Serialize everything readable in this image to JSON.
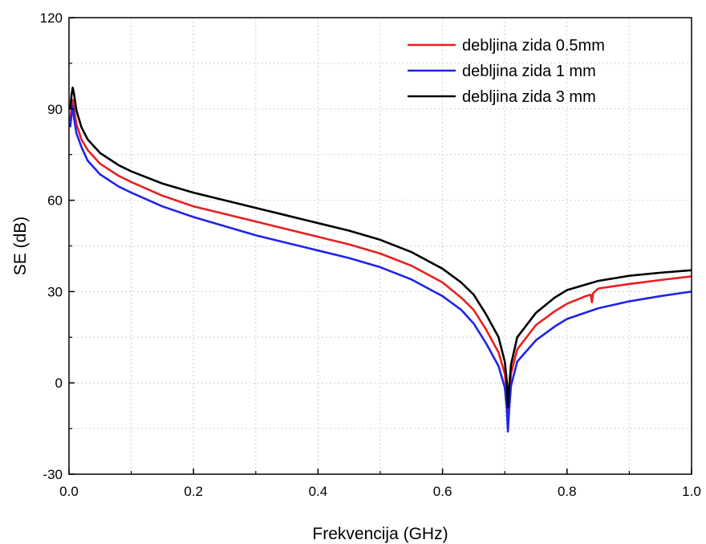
{
  "chart_data": {
    "type": "line",
    "xlabel": "Frekvencija (GHz)",
    "ylabel": "SE (dB)",
    "xlim": [
      0.0,
      1.0
    ],
    "ylim": [
      -30,
      120
    ],
    "xticks": [
      "0.0",
      "0.2",
      "0.4",
      "0.6",
      "0.8",
      "1.0"
    ],
    "yticks": [
      "-30",
      "0",
      "30",
      "60",
      "90",
      "120"
    ],
    "grid": true,
    "legend_position": "top-right",
    "series": [
      {
        "name": "debljina zida 0.5mm",
        "color": "#e8201f",
        "points": [
          [
            0.002,
            86
          ],
          [
            0.004,
            90
          ],
          [
            0.006,
            93
          ],
          [
            0.008,
            90
          ],
          [
            0.012,
            85
          ],
          [
            0.02,
            80
          ],
          [
            0.03,
            76.5
          ],
          [
            0.05,
            72
          ],
          [
            0.08,
            68
          ],
          [
            0.1,
            66
          ],
          [
            0.15,
            61.5
          ],
          [
            0.2,
            58
          ],
          [
            0.25,
            55.5
          ],
          [
            0.3,
            53
          ],
          [
            0.35,
            50.5
          ],
          [
            0.4,
            48
          ],
          [
            0.45,
            45.5
          ],
          [
            0.5,
            42.5
          ],
          [
            0.55,
            38.5
          ],
          [
            0.6,
            33
          ],
          [
            0.63,
            28
          ],
          [
            0.65,
            24
          ],
          [
            0.67,
            17.5
          ],
          [
            0.69,
            10
          ],
          [
            0.7,
            3
          ],
          [
            0.703,
            -3
          ],
          [
            0.705,
            -12
          ],
          [
            0.707,
            -5
          ],
          [
            0.71,
            3
          ],
          [
            0.72,
            11
          ],
          [
            0.75,
            19
          ],
          [
            0.78,
            23.5
          ],
          [
            0.8,
            26
          ],
          [
            0.83,
            28.5
          ],
          [
            0.838,
            29
          ],
          [
            0.84,
            26.5
          ],
          [
            0.842,
            29.5
          ],
          [
            0.85,
            31
          ],
          [
            0.9,
            32.5
          ],
          [
            0.95,
            33.8
          ],
          [
            1.0,
            35
          ]
        ]
      },
      {
        "name": "debljina zida 1 mm",
        "color": "#1f24e8",
        "points": [
          [
            0.002,
            84
          ],
          [
            0.004,
            88
          ],
          [
            0.006,
            91
          ],
          [
            0.008,
            87
          ],
          [
            0.012,
            82
          ],
          [
            0.02,
            77.5
          ],
          [
            0.03,
            73
          ],
          [
            0.05,
            68.5
          ],
          [
            0.08,
            64.5
          ],
          [
            0.1,
            62.5
          ],
          [
            0.15,
            58
          ],
          [
            0.2,
            54.5
          ],
          [
            0.25,
            51.5
          ],
          [
            0.3,
            48.5
          ],
          [
            0.35,
            46
          ],
          [
            0.4,
            43.5
          ],
          [
            0.45,
            41
          ],
          [
            0.5,
            38
          ],
          [
            0.55,
            34
          ],
          [
            0.6,
            28.5
          ],
          [
            0.63,
            24
          ],
          [
            0.65,
            19.5
          ],
          [
            0.67,
            13
          ],
          [
            0.69,
            5.5
          ],
          [
            0.7,
            -1.5
          ],
          [
            0.703,
            -8
          ],
          [
            0.705,
            -16
          ],
          [
            0.707,
            -9
          ],
          [
            0.71,
            -1
          ],
          [
            0.72,
            7
          ],
          [
            0.75,
            14
          ],
          [
            0.78,
            18.5
          ],
          [
            0.8,
            21
          ],
          [
            0.85,
            24.5
          ],
          [
            0.9,
            26.8
          ],
          [
            0.95,
            28.5
          ],
          [
            1.0,
            30
          ]
        ]
      },
      {
        "name": "debljina zida 3 mm",
        "color": "#000000",
        "points": [
          [
            0.002,
            90
          ],
          [
            0.004,
            94.5
          ],
          [
            0.006,
            97
          ],
          [
            0.008,
            95
          ],
          [
            0.012,
            89.5
          ],
          [
            0.02,
            84
          ],
          [
            0.03,
            80
          ],
          [
            0.05,
            75.5
          ],
          [
            0.08,
            71.5
          ],
          [
            0.1,
            69.5
          ],
          [
            0.15,
            65.5
          ],
          [
            0.2,
            62.5
          ],
          [
            0.25,
            60
          ],
          [
            0.3,
            57.5
          ],
          [
            0.35,
            55
          ],
          [
            0.4,
            52.5
          ],
          [
            0.45,
            50
          ],
          [
            0.5,
            47
          ],
          [
            0.55,
            43
          ],
          [
            0.6,
            37.5
          ],
          [
            0.63,
            33
          ],
          [
            0.65,
            29
          ],
          [
            0.67,
            22.5
          ],
          [
            0.69,
            15
          ],
          [
            0.7,
            7
          ],
          [
            0.703,
            1
          ],
          [
            0.705,
            -8
          ],
          [
            0.707,
            -1
          ],
          [
            0.71,
            6
          ],
          [
            0.72,
            15
          ],
          [
            0.75,
            23
          ],
          [
            0.78,
            28
          ],
          [
            0.8,
            30.5
          ],
          [
            0.85,
            33.5
          ],
          [
            0.9,
            35.2
          ],
          [
            0.95,
            36.2
          ],
          [
            1.0,
            37
          ]
        ]
      }
    ]
  }
}
